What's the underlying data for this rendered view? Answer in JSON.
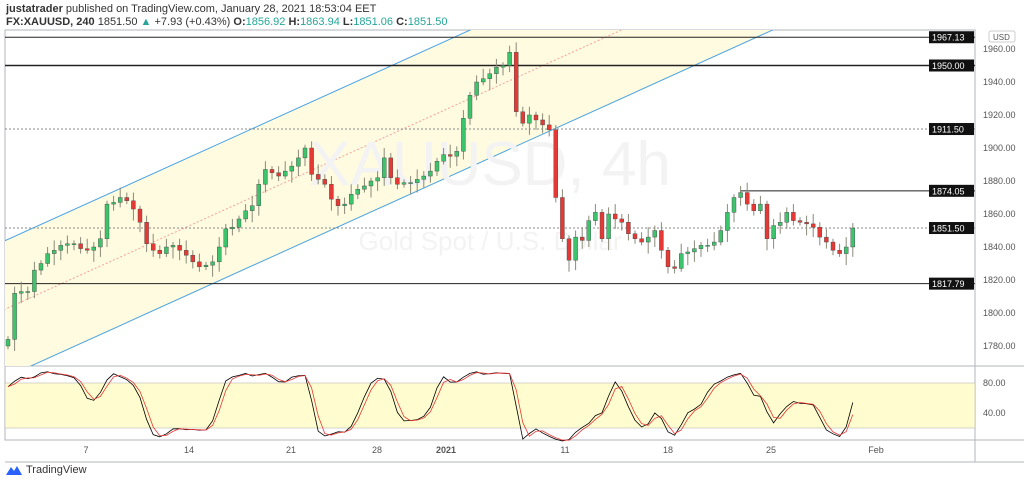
{
  "header": {
    "line1_user": "justatrader",
    "line1_rest": " published on TradingView.com, January 28, 2021 18:53:04 EET",
    "symbol": "FX:XAUUSD, 240",
    "last": "1851.50",
    "change": "+7.93 (+0.43%)",
    "o_label": "O:",
    "o": "1856.92",
    "h_label": "H:",
    "h": "1863.94",
    "l_label": "L:",
    "l": "1851.06",
    "c_label": "C:",
    "c": "1851.50"
  },
  "watermark": {
    "line1": "XAUUSD, 4h",
    "line2": "Gold Spot / U.S. Dollar"
  },
  "currency": "USD",
  "footer": {
    "brand": "TradingView"
  },
  "colors": {
    "up": "#26a69a",
    "up_body": "#3cc36b",
    "down": "#e53935",
    "channel": "#4ca3e0",
    "channel_fill": "#fffbe0",
    "k_line": "#000000",
    "d_line": "#e53935",
    "stoch_band": "#fffccf"
  },
  "chart_data": {
    "type": "candlestick",
    "symbol": "FX:XAUUSD",
    "interval": "240",
    "yaxis_ticks": [
      "1780.00",
      "1800.00",
      "1820.00",
      "1840.00",
      "1860.00",
      "1880.00",
      "1900.00",
      "1920.00",
      "1940.00",
      "1960.00"
    ],
    "ylim": [
      1772,
      1970
    ],
    "xaxis_ticks": [
      "7",
      "14",
      "21",
      "28",
      "2021",
      "11",
      "18",
      "25",
      "Feb"
    ],
    "price_labels": [
      "1967.13",
      "1950.00",
      "1911.50",
      "1874.05",
      "1851.50",
      "1817.79"
    ],
    "horizontal_levels": [
      {
        "price": 1967.13,
        "style": "solid"
      },
      {
        "price": 1950.0,
        "style": "solid"
      },
      {
        "price": 1911.5,
        "style": "dotted"
      },
      {
        "price": 1874.05,
        "style": "solid"
      },
      {
        "price": 1851.5,
        "style": "dotted"
      },
      {
        "price": 1817.79,
        "style": "solid"
      }
    ],
    "closes": [
      1784,
      1812,
      1813,
      1813,
      1826,
      1830,
      1836,
      1838,
      1841,
      1842,
      1842,
      1839,
      1838,
      1840,
      1845,
      1866,
      1867,
      1870,
      1868,
      1863,
      1855,
      1842,
      1838,
      1836,
      1840,
      1841,
      1838,
      1835,
      1831,
      1828,
      1829,
      1831,
      1840,
      1851,
      1852,
      1857,
      1862,
      1865,
      1878,
      1887,
      1885,
      1883,
      1886,
      1889,
      1894,
      1900,
      1884,
      1881,
      1878,
      1869,
      1865,
      1866,
      1872,
      1875,
      1877,
      1880,
      1882,
      1894,
      1882,
      1878,
      1879,
      1879,
      1881,
      1883,
      1886,
      1892,
      1896,
      1895,
      1898,
      1918,
      1932,
      1940,
      1942,
      1945,
      1949,
      1950,
      1958,
      1922,
      1915,
      1920,
      1917,
      1914,
      1911,
      1870,
      1845,
      1832,
      1846,
      1844,
      1856,
      1861,
      1845,
      1860,
      1857,
      1855,
      1848,
      1845,
      1843,
      1846,
      1850,
      1838,
      1828,
      1827,
      1836,
      1837,
      1839,
      1841,
      1841,
      1843,
      1850,
      1861,
      1870,
      1873,
      1866,
      1862,
      1866,
      1845,
      1853,
      1855,
      1861,
      1856,
      1855,
      1854,
      1852,
      1846,
      1843,
      1838,
      1836,
      1840,
      1851.5
    ],
    "stochastic": {
      "levels": [
        80,
        20
      ],
      "yaxis_ticks": [
        "80.00",
        "40.00"
      ]
    }
  }
}
